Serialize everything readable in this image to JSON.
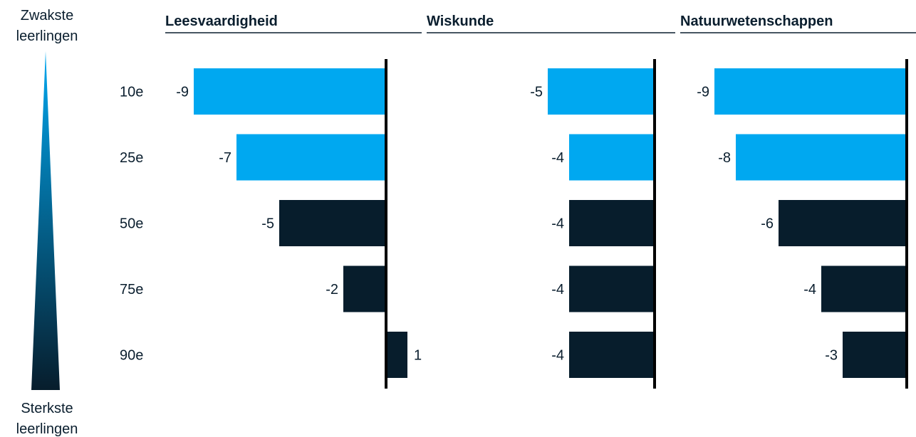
{
  "legend": {
    "top_label_line1": "Zwakste",
    "top_label_line2": "leerlingen",
    "bottom_label_line1": "Sterkste",
    "bottom_label_line2": "leerlingen",
    "gradient_top_color": "#00a8f0",
    "gradient_bottom_color": "#071d2c"
  },
  "colors": {
    "highlight": "#00a8f0",
    "default": "#071d2c",
    "axis": "#000000"
  },
  "chart_data": {
    "type": "bar",
    "orientation": "horizontal",
    "categories": [
      "10e",
      "25e",
      "50e",
      "75e",
      "90e"
    ],
    "panels": [
      {
        "title": "Leesvaardigheid",
        "values": [
          -9,
          -7,
          -5,
          -2,
          1
        ],
        "highlighted": [
          true,
          true,
          false,
          false,
          false
        ]
      },
      {
        "title": "Wiskunde",
        "values": [
          -5,
          -4,
          -4,
          -4,
          -4
        ],
        "highlighted": [
          true,
          true,
          false,
          false,
          false
        ]
      },
      {
        "title": "Natuurwetenschappen",
        "values": [
          -9,
          -8,
          -6,
          -4,
          -3
        ],
        "highlighted": [
          true,
          true,
          false,
          false,
          false
        ]
      }
    ]
  }
}
